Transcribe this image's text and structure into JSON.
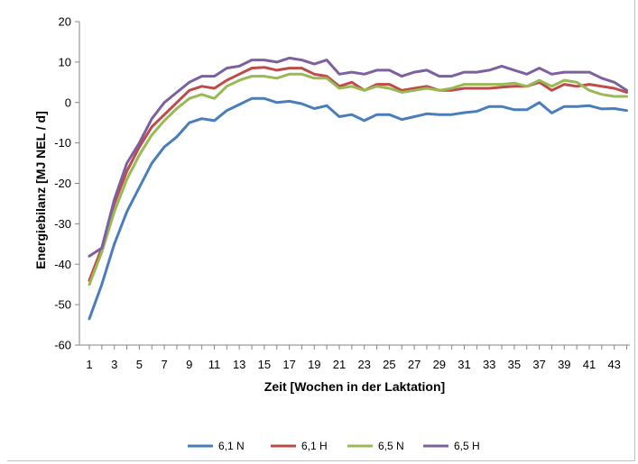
{
  "chart_data": {
    "type": "line",
    "title": "",
    "xlabel": "Zeit [Wochen in der Laktation]",
    "ylabel": "Energiebilanz [MJ NEL / d]",
    "ylim": [
      -60,
      20
    ],
    "yticks": [
      20,
      10,
      0,
      -10,
      -20,
      -30,
      -40,
      -50,
      -60
    ],
    "xlim": [
      1,
      44
    ],
    "xticks": [
      1,
      3,
      5,
      7,
      9,
      11,
      13,
      15,
      17,
      19,
      21,
      23,
      25,
      27,
      29,
      31,
      33,
      35,
      37,
      39,
      41,
      43
    ],
    "grid": false,
    "legend_position": "bottom",
    "x": [
      1,
      2,
      3,
      4,
      5,
      6,
      7,
      8,
      9,
      10,
      11,
      12,
      13,
      14,
      15,
      16,
      17,
      18,
      19,
      20,
      21,
      22,
      23,
      24,
      25,
      26,
      27,
      28,
      29,
      30,
      31,
      32,
      33,
      34,
      35,
      36,
      37,
      38,
      39,
      40,
      41,
      42,
      43,
      44
    ],
    "series": [
      {
        "name": "6,1 N",
        "color": "#4a7ebb",
        "values": [
          -53.5,
          -45,
          -35,
          -27,
          -21,
          -15,
          -11,
          -8.5,
          -5,
          -4,
          -4.5,
          -2,
          -0.5,
          1,
          1,
          0,
          0.3,
          -0.3,
          -1.5,
          -0.8,
          -3.5,
          -3,
          -4.5,
          -3,
          -3,
          -4.2,
          -3.5,
          -2.8,
          -3,
          -3,
          -2.5,
          -2.2,
          -1,
          -1,
          -1.8,
          -1.8,
          0,
          -2.6,
          -1,
          -1,
          -0.8,
          -1.6,
          -1.5,
          -2
        ]
      },
      {
        "name": "6,1 H",
        "color": "#be4b48",
        "values": [
          -44,
          -36,
          -25,
          -17,
          -11,
          -6,
          -3,
          0,
          3,
          4,
          3.5,
          5.5,
          7,
          8.5,
          8.7,
          8,
          8.5,
          8.5,
          7,
          6.5,
          4,
          5,
          3,
          4.5,
          4.5,
          3,
          3.5,
          4,
          3,
          3,
          3.5,
          3.5,
          3.5,
          3.8,
          4,
          4,
          5,
          3,
          4.5,
          4,
          4.5,
          4,
          3.5,
          2.5
        ]
      },
      {
        "name": "6,5 N",
        "color": "#98b954",
        "values": [
          -45,
          -37,
          -27,
          -19,
          -13,
          -8,
          -4.5,
          -1.5,
          1,
          2,
          1,
          4,
          5.5,
          6.5,
          6.5,
          6,
          7,
          7,
          6,
          6,
          3.5,
          4,
          3,
          4,
          3.5,
          2.5,
          3,
          3.5,
          3,
          3.5,
          4.5,
          4.5,
          4.5,
          4.5,
          4.8,
          4,
          5.5,
          4,
          5.5,
          5,
          3,
          2,
          1.5,
          1.5
        ]
      },
      {
        "name": "6,5 H",
        "color": "#7d60a0",
        "values": [
          -38,
          -36,
          -24,
          -15,
          -10,
          -4,
          0,
          2.5,
          5,
          6.5,
          6.5,
          8.5,
          9,
          10.5,
          10.5,
          10,
          11,
          10.5,
          9.5,
          10.5,
          7,
          7.5,
          7,
          8,
          8,
          6.5,
          7.5,
          8,
          6.5,
          6.5,
          7.5,
          7.5,
          8,
          9,
          8,
          7,
          8.5,
          7,
          7.5,
          7.5,
          7.5,
          6,
          5,
          3
        ]
      }
    ]
  }
}
